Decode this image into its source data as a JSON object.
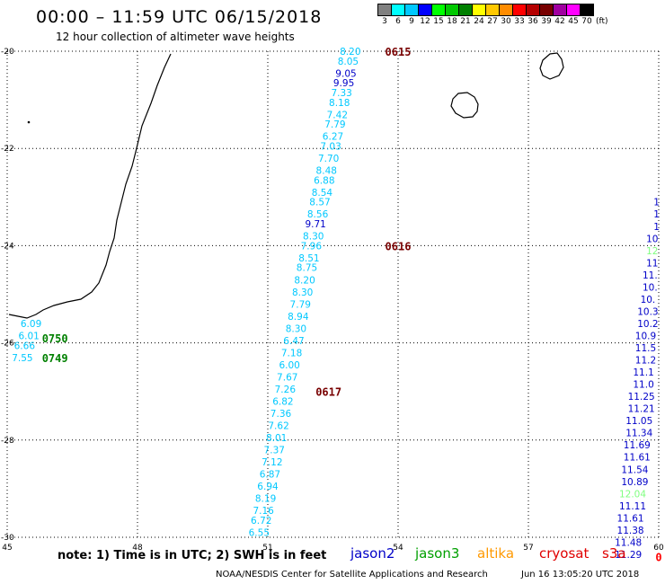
{
  "header": {
    "title": "00:00 – 11:59 UTC 06/15/2018",
    "subtitle": "12 hour collection of altimeter wave heights"
  },
  "legend": {
    "unit": "(ft)",
    "bins": [
      {
        "label": "3",
        "color": "#808080"
      },
      {
        "label": "6",
        "color": "#00ffff"
      },
      {
        "label": "9",
        "color": "#00c8ff"
      },
      {
        "label": "12",
        "color": "#0000ff"
      },
      {
        "label": "15",
        "color": "#00ff00"
      },
      {
        "label": "18",
        "color": "#00c800"
      },
      {
        "label": "21",
        "color": "#008000"
      },
      {
        "label": "24",
        "color": "#ffff00"
      },
      {
        "label": "27",
        "color": "#ffc800"
      },
      {
        "label": "30",
        "color": "#ff8c00"
      },
      {
        "label": "33",
        "color": "#ff0000"
      },
      {
        "label": "36",
        "color": "#b40000"
      },
      {
        "label": "39",
        "color": "#780000"
      },
      {
        "label": "42",
        "color": "#a000a0"
      },
      {
        "label": "45",
        "color": "#ff00ff"
      },
      {
        "label": "70",
        "color": "#000000"
      }
    ]
  },
  "map": {
    "lon_range": [
      45,
      60
    ],
    "lat_range": [
      -30,
      -20
    ],
    "lon_ticks": [
      45,
      48,
      51,
      54,
      57,
      60
    ],
    "lat_ticks": [
      -20,
      -22,
      -24,
      -26,
      -28,
      -30
    ]
  },
  "tracks": [
    {
      "name": "main",
      "points": [
        {
          "lon": 52.9,
          "lat": -20.0,
          "v": "8.20",
          "c": "#00c8ff"
        },
        {
          "lon": 52.85,
          "lat": -20.2,
          "v": "8.05",
          "c": "#00c8ff"
        },
        {
          "lon": 52.8,
          "lat": -20.45,
          "v": "9.05",
          "c": "#0000c8"
        },
        {
          "lon": 52.75,
          "lat": -20.65,
          "v": "9.95",
          "c": "#0000c8"
        },
        {
          "lon": 52.7,
          "lat": -20.85,
          "v": "7.33",
          "c": "#00c8ff"
        },
        {
          "lon": 52.65,
          "lat": -21.05,
          "v": "8.18",
          "c": "#00c8ff"
        },
        {
          "lon": 52.6,
          "lat": -21.3,
          "v": "7.42",
          "c": "#00c8ff"
        },
        {
          "lon": 52.55,
          "lat": -21.5,
          "v": "7.79",
          "c": "#00c8ff"
        },
        {
          "lon": 52.5,
          "lat": -21.75,
          "v": "6.27",
          "c": "#00c8ff"
        },
        {
          "lon": 52.45,
          "lat": -21.95,
          "v": "7.03",
          "c": "#00c8ff"
        },
        {
          "lon": 52.4,
          "lat": -22.2,
          "v": "7.70",
          "c": "#00c8ff"
        },
        {
          "lon": 52.35,
          "lat": -22.45,
          "v": "8.48",
          "c": "#00c8ff"
        },
        {
          "lon": 52.3,
          "lat": -22.65,
          "v": "6.88",
          "c": "#00c8ff"
        },
        {
          "lon": 52.25,
          "lat": -22.9,
          "v": "8.54",
          "c": "#00c8ff"
        },
        {
          "lon": 52.2,
          "lat": -23.1,
          "v": "8.57",
          "c": "#00c8ff"
        },
        {
          "lon": 52.15,
          "lat": -23.35,
          "v": "8.56",
          "c": "#00c8ff"
        },
        {
          "lon": 52.1,
          "lat": -23.55,
          "v": "9.71",
          "c": "#0000c8"
        },
        {
          "lon": 52.05,
          "lat": -23.8,
          "v": "8.30",
          "c": "#00c8ff"
        },
        {
          "lon": 52.0,
          "lat": -24.0,
          "v": "7.96",
          "c": "#00c8ff"
        },
        {
          "lon": 51.95,
          "lat": -24.25,
          "v": "8.51",
          "c": "#00c8ff"
        },
        {
          "lon": 51.9,
          "lat": -24.45,
          "v": "8.75",
          "c": "#00c8ff"
        },
        {
          "lon": 51.85,
          "lat": -24.7,
          "v": "8.20",
          "c": "#00c8ff"
        },
        {
          "lon": 51.8,
          "lat": -24.95,
          "v": "8.30",
          "c": "#00c8ff"
        },
        {
          "lon": 51.75,
          "lat": -25.2,
          "v": "7.79",
          "c": "#00c8ff"
        },
        {
          "lon": 51.7,
          "lat": -25.45,
          "v": "8.94",
          "c": "#00c8ff"
        },
        {
          "lon": 51.65,
          "lat": -25.7,
          "v": "8.30",
          "c": "#00c8ff"
        },
        {
          "lon": 51.6,
          "lat": -25.95,
          "v": "6.47",
          "c": "#00c8ff"
        },
        {
          "lon": 51.55,
          "lat": -26.2,
          "v": "7.18",
          "c": "#00c8ff"
        },
        {
          "lon": 51.5,
          "lat": -26.45,
          "v": "6.00",
          "c": "#00c8ff"
        },
        {
          "lon": 51.45,
          "lat": -26.7,
          "v": "7.67",
          "c": "#00c8ff"
        },
        {
          "lon": 51.4,
          "lat": -26.95,
          "v": "7.26",
          "c": "#00c8ff"
        },
        {
          "lon": 51.35,
          "lat": -27.2,
          "v": "6.82",
          "c": "#00c8ff"
        },
        {
          "lon": 51.3,
          "lat": -27.45,
          "v": "7.36",
          "c": "#00c8ff"
        },
        {
          "lon": 51.25,
          "lat": -27.7,
          "v": "7.62",
          "c": "#00c8ff"
        },
        {
          "lon": 51.2,
          "lat": -27.95,
          "v": "8.01",
          "c": "#00c8ff"
        },
        {
          "lon": 51.15,
          "lat": -28.2,
          "v": "7.37",
          "c": "#00c8ff"
        },
        {
          "lon": 51.1,
          "lat": -28.45,
          "v": "7.12",
          "c": "#00c8ff"
        },
        {
          "lon": 51.05,
          "lat": -28.7,
          "v": "6.87",
          "c": "#00c8ff"
        },
        {
          "lon": 51.0,
          "lat": -28.95,
          "v": "6.94",
          "c": "#00c8ff"
        },
        {
          "lon": 50.95,
          "lat": -29.2,
          "v": "8.19",
          "c": "#00c8ff"
        },
        {
          "lon": 50.9,
          "lat": -29.45,
          "v": "7.16",
          "c": "#00c8ff"
        },
        {
          "lon": 50.85,
          "lat": -29.65,
          "v": "6.72",
          "c": "#00c8ff"
        },
        {
          "lon": 50.8,
          "lat": -29.9,
          "v": "6.55",
          "c": "#00c8ff"
        }
      ]
    },
    {
      "name": "coastal",
      "points": [
        {
          "lon": 45.55,
          "lat": -25.6,
          "v": "6.09",
          "c": "#00c8ff"
        },
        {
          "lon": 45.5,
          "lat": -25.85,
          "v": "6.01",
          "c": "#00c8ff"
        },
        {
          "lon": 45.4,
          "lat": -26.05,
          "v": "6.66",
          "c": "#00c8ff"
        },
        {
          "lon": 45.35,
          "lat": -26.3,
          "v": "7.55",
          "c": "#00c8ff"
        }
      ]
    },
    {
      "name": "east",
      "points": [
        {
          "lon": 59.95,
          "lat": -23.1,
          "v": "1",
          "c": "#0000c8"
        },
        {
          "lon": 59.95,
          "lat": -23.35,
          "v": "1",
          "c": "#0000c8"
        },
        {
          "lon": 59.95,
          "lat": -23.6,
          "v": "1",
          "c": "#0000c8"
        },
        {
          "lon": 59.85,
          "lat": -23.85,
          "v": "10",
          "c": "#0000c8"
        },
        {
          "lon": 59.85,
          "lat": -24.1,
          "v": "12",
          "c": "#80ff80"
        },
        {
          "lon": 59.85,
          "lat": -24.35,
          "v": "11",
          "c": "#0000c8"
        },
        {
          "lon": 59.8,
          "lat": -24.6,
          "v": "11.",
          "c": "#0000c8"
        },
        {
          "lon": 59.8,
          "lat": -24.85,
          "v": "10.",
          "c": "#0000c8"
        },
        {
          "lon": 59.75,
          "lat": -25.1,
          "v": "10.",
          "c": "#0000c8"
        },
        {
          "lon": 59.75,
          "lat": -25.35,
          "v": "10.3",
          "c": "#0000c8"
        },
        {
          "lon": 59.75,
          "lat": -25.6,
          "v": "10.2",
          "c": "#0000c8"
        },
        {
          "lon": 59.7,
          "lat": -25.85,
          "v": "10.9",
          "c": "#0000c8"
        },
        {
          "lon": 59.7,
          "lat": -26.1,
          "v": "11.5",
          "c": "#0000c8"
        },
        {
          "lon": 59.7,
          "lat": -26.35,
          "v": "11.2",
          "c": "#0000c8"
        },
        {
          "lon": 59.65,
          "lat": -26.6,
          "v": "11.1",
          "c": "#0000c8"
        },
        {
          "lon": 59.65,
          "lat": -26.85,
          "v": "11.0",
          "c": "#0000c8"
        },
        {
          "lon": 59.6,
          "lat": -27.1,
          "v": "11.25",
          "c": "#0000c8"
        },
        {
          "lon": 59.6,
          "lat": -27.35,
          "v": "11.21",
          "c": "#0000c8"
        },
        {
          "lon": 59.55,
          "lat": -27.6,
          "v": "11.05",
          "c": "#0000c8"
        },
        {
          "lon": 59.55,
          "lat": -27.85,
          "v": "11.34",
          "c": "#0000c8"
        },
        {
          "lon": 59.5,
          "lat": -28.1,
          "v": "11.69",
          "c": "#0000c8"
        },
        {
          "lon": 59.5,
          "lat": -28.35,
          "v": "11.61",
          "c": "#0000c8"
        },
        {
          "lon": 59.45,
          "lat": -28.6,
          "v": "11.54",
          "c": "#0000c8"
        },
        {
          "lon": 59.45,
          "lat": -28.85,
          "v": "10.89",
          "c": "#0000c8"
        },
        {
          "lon": 59.4,
          "lat": -29.1,
          "v": "12.04",
          "c": "#80ff80"
        },
        {
          "lon": 59.4,
          "lat": -29.35,
          "v": "11.11",
          "c": "#0000c8"
        },
        {
          "lon": 59.35,
          "lat": -29.6,
          "v": "11.61",
          "c": "#0000c8"
        },
        {
          "lon": 59.35,
          "lat": -29.85,
          "v": "11.38",
          "c": "#0000c8"
        },
        {
          "lon": 59.3,
          "lat": -30.1,
          "v": "11.48",
          "c": "#0000c8"
        },
        {
          "lon": 59.3,
          "lat": -30.35,
          "v": "11.29",
          "c": "#0000c8"
        }
      ]
    }
  ],
  "time_labels": [
    {
      "lon": 54.0,
      "lat": -20.0,
      "text": "0615",
      "c": "#780000"
    },
    {
      "lon": 54.0,
      "lat": -24.0,
      "text": "0616",
      "c": "#780000"
    },
    {
      "lon": 52.4,
      "lat": -27.0,
      "text": "0617",
      "c": "#780000"
    },
    {
      "lon": 46.1,
      "lat": -25.9,
      "text": "0750",
      "c": "#008000"
    },
    {
      "lon": 46.1,
      "lat": -26.3,
      "text": "0749",
      "c": "#008000"
    },
    {
      "lon": 60.0,
      "lat": -30.4,
      "text": "0",
      "c": "#ff0000"
    }
  ],
  "footer": {
    "note": "note:  1) Time is in UTC;  2) SWH is in feet",
    "satellites": [
      {
        "name": "jason2",
        "color": "#0000c8"
      },
      {
        "name": "jason3",
        "color": "#00a000"
      },
      {
        "name": "altika",
        "color": "#ff9900"
      },
      {
        "name": "cryosat",
        "color": "#e00000"
      },
      {
        "name": "s3a",
        "color": "#e00000"
      }
    ],
    "credit": "NOAA/NESDIS Center for Satellite Applications and Research",
    "timestamp": "Jun 16 13:05:20 UTC 2018"
  }
}
